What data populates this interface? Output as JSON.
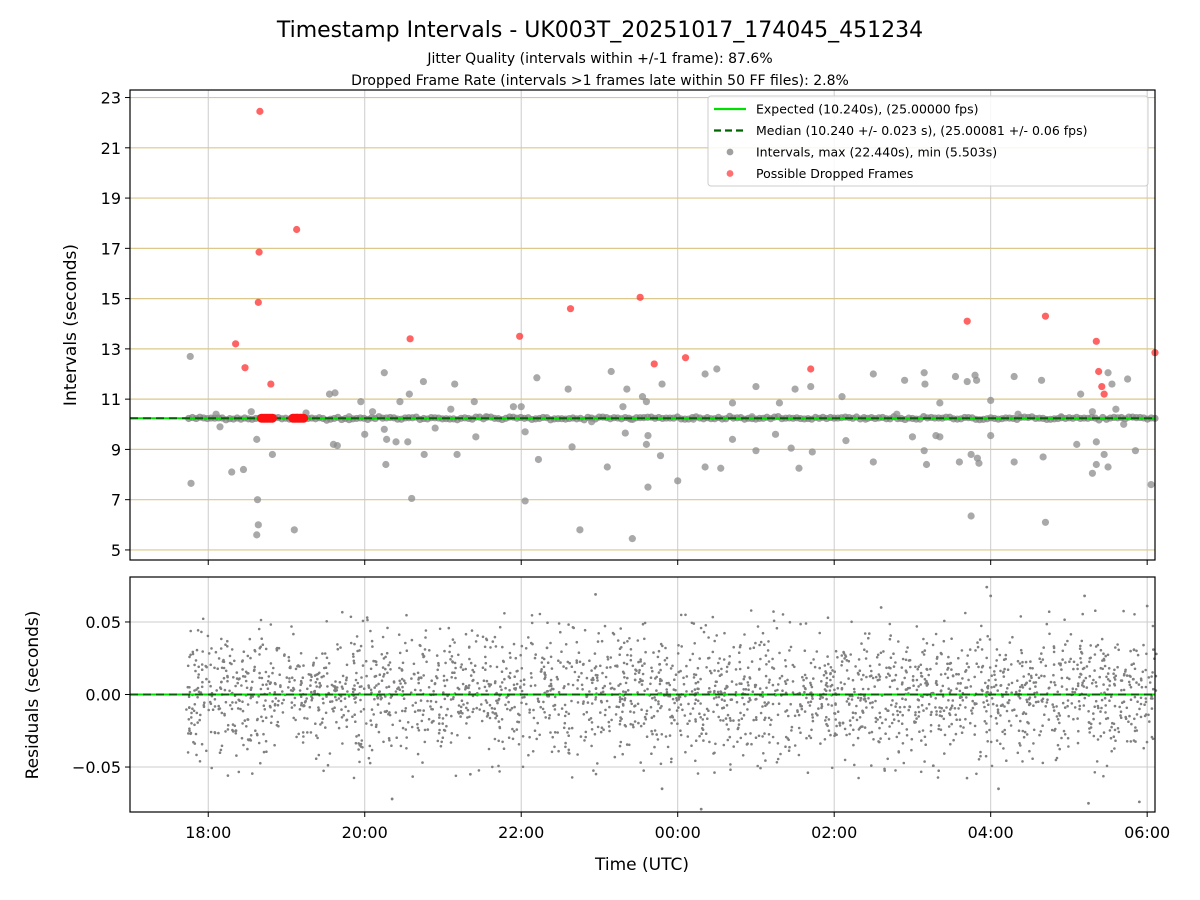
{
  "chart_data": [
    {
      "type": "scatter",
      "title": "Timestamp Intervals - UK003T_20251017_174045_451234",
      "subtitle1": "Jitter Quality (intervals within +/-1 frame): 87.6%",
      "subtitle2": "Dropped Frame Rate (intervals >1 frames late within 50 FF files): 2.8%",
      "xlabel": "",
      "ylabel": "Intervals (seconds)",
      "xlim": [
        -1.0,
        12.1
      ],
      "ylim": [
        4.6,
        23.3
      ],
      "yticks": [
        5,
        7,
        9,
        11,
        13,
        15,
        17,
        19,
        21,
        23
      ],
      "ytick_labels": [
        "5",
        "7",
        "9",
        "11",
        "13",
        "15",
        "17",
        "19",
        "21",
        "23"
      ],
      "legend_position": "top-right",
      "expected_value": 10.24,
      "median_value": 10.24,
      "series": [
        {
          "name": "Expected (10.240s), (25.00000 fps)",
          "kind": "line",
          "color": "#00e000"
        },
        {
          "name": "Median (10.240 +/- 0.023 s), (25.00081 +/- 0.06 fps)",
          "kind": "dashed-line",
          "color": "#006400"
        },
        {
          "name": "Intervals, max (22.440s), min (5.503s)",
          "kind": "points",
          "color": "#808080",
          "points": [
            [
              -0.23,
              12.7
            ],
            [
              -0.22,
              7.65
            ],
            [
              0.1,
              10.4
            ],
            [
              0.15,
              9.9
            ],
            [
              0.3,
              8.1
            ],
            [
              0.45,
              8.2
            ],
            [
              0.55,
              10.5
            ],
            [
              0.62,
              9.4
            ],
            [
              0.63,
              7.0
            ],
            [
              0.64,
              6.0
            ],
            [
              0.62,
              5.6
            ],
            [
              0.82,
              8.8
            ],
            [
              1.1,
              5.8
            ],
            [
              1.25,
              10.45
            ],
            [
              1.55,
              11.2
            ],
            [
              1.62,
              11.25
            ],
            [
              1.6,
              9.2
            ],
            [
              1.65,
              9.15
            ],
            [
              1.8,
              10.3
            ],
            [
              1.95,
              10.9
            ],
            [
              2.0,
              9.6
            ],
            [
              2.1,
              10.5
            ],
            [
              2.25,
              9.8
            ],
            [
              2.25,
              12.05
            ],
            [
              2.27,
              8.4
            ],
            [
              2.28,
              9.4
            ],
            [
              2.4,
              9.3
            ],
            [
              2.45,
              10.9
            ],
            [
              2.55,
              9.3
            ],
            [
              2.57,
              11.2
            ],
            [
              2.6,
              7.05
            ],
            [
              2.75,
              11.7
            ],
            [
              2.76,
              8.8
            ],
            [
              2.9,
              9.85
            ],
            [
              3.1,
              10.6
            ],
            [
              3.15,
              11.6
            ],
            [
              3.18,
              8.8
            ],
            [
              3.4,
              10.9
            ],
            [
              3.42,
              9.5
            ],
            [
              3.55,
              10.3
            ],
            [
              3.9,
              10.7
            ],
            [
              4.0,
              10.7
            ],
            [
              4.05,
              6.95
            ],
            [
              4.05,
              9.7
            ],
            [
              4.2,
              11.85
            ],
            [
              4.22,
              8.6
            ],
            [
              4.6,
              11.4
            ],
            [
              4.65,
              9.1
            ],
            [
              4.75,
              5.8
            ],
            [
              4.9,
              10.1
            ],
            [
              5.1,
              8.3
            ],
            [
              5.15,
              12.1
            ],
            [
              5.3,
              10.7
            ],
            [
              5.35,
              11.4
            ],
            [
              5.33,
              9.65
            ],
            [
              5.4,
              10.2
            ],
            [
              5.42,
              5.45
            ],
            [
              5.55,
              11.1
            ],
            [
              5.6,
              10.9
            ],
            [
              5.62,
              9.55
            ],
            [
              5.6,
              9.2
            ],
            [
              5.62,
              7.5
            ],
            [
              5.78,
              8.75
            ],
            [
              5.8,
              11.6
            ],
            [
              6.0,
              7.75
            ],
            [
              6.2,
              10.2
            ],
            [
              6.35,
              12.0
            ],
            [
              6.35,
              8.3
            ],
            [
              6.5,
              12.2
            ],
            [
              6.55,
              8.25
            ],
            [
              6.7,
              9.4
            ],
            [
              6.7,
              10.85
            ],
            [
              6.95,
              10.3
            ],
            [
              7.0,
              11.5
            ],
            [
              7.0,
              8.95
            ],
            [
              7.25,
              9.6
            ],
            [
              7.3,
              10.85
            ],
            [
              7.45,
              9.05
            ],
            [
              7.5,
              11.4
            ],
            [
              7.55,
              8.25
            ],
            [
              7.7,
              11.5
            ],
            [
              7.72,
              8.9
            ],
            [
              8.1,
              11.1
            ],
            [
              8.15,
              9.35
            ],
            [
              8.4,
              10.2
            ],
            [
              8.5,
              12.0
            ],
            [
              8.5,
              8.5
            ],
            [
              8.8,
              10.4
            ],
            [
              8.9,
              11.75
            ],
            [
              9.0,
              9.5
            ],
            [
              9.15,
              12.05
            ],
            [
              9.16,
              11.6
            ],
            [
              9.15,
              8.95
            ],
            [
              9.18,
              8.4
            ],
            [
              9.3,
              9.55
            ],
            [
              9.35,
              10.85
            ],
            [
              9.35,
              9.5
            ],
            [
              9.55,
              11.9
            ],
            [
              9.6,
              8.5
            ],
            [
              9.7,
              11.7
            ],
            [
              9.75,
              8.8
            ],
            [
              9.75,
              6.35
            ],
            [
              9.8,
              11.95
            ],
            [
              9.82,
              11.75
            ],
            [
              9.85,
              8.45
            ],
            [
              9.83,
              8.65
            ],
            [
              10.0,
              10.95
            ],
            [
              10.0,
              9.55
            ],
            [
              10.3,
              11.9
            ],
            [
              10.3,
              8.5
            ],
            [
              10.35,
              10.4
            ],
            [
              10.65,
              11.75
            ],
            [
              10.67,
              8.7
            ],
            [
              10.7,
              6.1
            ],
            [
              10.9,
              10.3
            ],
            [
              11.1,
              9.2
            ],
            [
              11.15,
              11.2
            ],
            [
              11.3,
              10.5
            ],
            [
              11.3,
              8.05
            ],
            [
              11.35,
              8.4
            ],
            [
              11.35,
              9.3
            ],
            [
              11.45,
              8.8
            ],
            [
              11.5,
              8.3
            ],
            [
              11.5,
              12.05
            ],
            [
              11.55,
              11.6
            ],
            [
              11.6,
              10.6
            ],
            [
              11.7,
              10.0
            ],
            [
              11.75,
              11.8
            ],
            [
              11.85,
              8.95
            ],
            [
              12.05,
              7.6
            ]
          ]
        },
        {
          "name": "Possible Dropped Frames",
          "kind": "points",
          "color": "#ff4040",
          "points": [
            [
              0.35,
              13.2
            ],
            [
              0.47,
              12.25
            ],
            [
              0.66,
              22.45
            ],
            [
              0.65,
              16.85
            ],
            [
              0.64,
              14.85
            ],
            [
              0.8,
              11.6
            ],
            [
              1.13,
              17.75
            ],
            [
              2.58,
              13.4
            ],
            [
              3.98,
              13.5
            ],
            [
              4.63,
              14.6
            ],
            [
              5.52,
              15.05
            ],
            [
              5.7,
              12.4
            ],
            [
              6.1,
              12.65
            ],
            [
              7.7,
              12.2
            ],
            [
              9.7,
              14.1
            ],
            [
              10.7,
              14.3
            ],
            [
              11.35,
              13.3
            ],
            [
              11.38,
              12.1
            ],
            [
              11.42,
              11.5
            ],
            [
              11.45,
              11.2
            ],
            [
              12.1,
              12.85
            ]
          ]
        }
      ]
    },
    {
      "type": "scatter",
      "xlabel": "Time (UTC)",
      "ylabel": "Residuals (seconds)",
      "xlim": [
        -1.0,
        12.1
      ],
      "ylim": [
        -0.081,
        0.081
      ],
      "yticks": [
        0.05,
        0.0,
        -0.05
      ],
      "ytick_labels": [
        "0.05",
        "0.00",
        "−0.05"
      ],
      "xticks": [
        0,
        2,
        4,
        6,
        8,
        10,
        12
      ],
      "xtick_labels": [
        "18:00",
        "20:00",
        "22:00",
        "00:00",
        "02:00",
        "04:00",
        "06:00"
      ],
      "reference_line": 0.0,
      "series": [
        {
          "name": "Residuals",
          "kind": "points",
          "color": "#808080",
          "outliers": [
            [
              2.35,
              -0.072
            ],
            [
              5.8,
              -0.065
            ],
            [
              6.3,
              -0.079
            ],
            [
              9.95,
              0.074
            ],
            [
              10.0,
              0.068
            ],
            [
              11.2,
              0.068
            ],
            [
              11.25,
              -0.075
            ],
            [
              11.9,
              -0.074
            ],
            [
              12.0,
              0.061
            ],
            [
              3.35,
              -0.055
            ],
            [
              8.6,
              0.06
            ],
            [
              4.95,
              0.069
            ],
            [
              10.1,
              -0.065
            ]
          ],
          "count": 2600,
          "spread": 0.022
        }
      ]
    }
  ]
}
